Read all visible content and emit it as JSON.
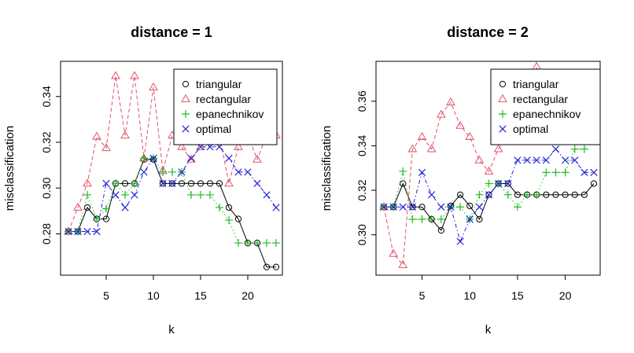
{
  "chart_data": [
    {
      "type": "line",
      "title": "distance = 1",
      "xlabel": "k",
      "ylabel": "misclassification",
      "xlim": [
        1,
        23
      ],
      "ylim": [
        0.264,
        0.354
      ],
      "x_ticks": [
        5,
        10,
        15,
        20
      ],
      "y_ticks": [
        0.28,
        0.3,
        0.32,
        0.34
      ],
      "y_tick_labels": [
        "0.28",
        "0.30",
        "0.32",
        "0.34"
      ],
      "x": [
        1,
        2,
        3,
        4,
        5,
        6,
        7,
        8,
        9,
        10,
        11,
        12,
        13,
        14,
        15,
        16,
        17,
        18,
        19,
        20,
        21,
        22,
        23
      ],
      "series": [
        {
          "name": "triangular",
          "color": "#000000",
          "marker": "circle",
          "line": "solid",
          "values": [
            0.281,
            0.281,
            0.2915,
            0.2865,
            0.2865,
            0.302,
            0.302,
            0.302,
            0.3125,
            0.3125,
            0.302,
            0.302,
            0.302,
            0.302,
            0.302,
            0.302,
            0.302,
            0.2915,
            0.2865,
            0.276,
            0.276,
            0.2655,
            0.2655
          ]
        },
        {
          "name": "rectangular",
          "color": "#DF536B",
          "marker": "triangle",
          "line": "dashed",
          "values": [
            0.281,
            0.2915,
            0.302,
            0.3225,
            0.3175,
            0.349,
            0.323,
            0.349,
            0.313,
            0.344,
            0.3075,
            0.323,
            0.318,
            0.3125,
            0.318,
            0.323,
            0.323,
            0.302,
            0.318,
            0.323,
            0.3125,
            0.323,
            0.323
          ]
        },
        {
          "name": "epanechnikov",
          "color": "#22BB22",
          "marker": "plus",
          "line": "dotted",
          "values": [
            0.281,
            0.281,
            0.297,
            0.2865,
            0.291,
            0.302,
            0.297,
            0.302,
            0.313,
            0.313,
            0.307,
            0.307,
            0.307,
            0.297,
            0.297,
            0.297,
            0.2915,
            0.286,
            0.276,
            0.276,
            0.276,
            0.276,
            0.276
          ]
        },
        {
          "name": "optimal",
          "color": "#2222DD",
          "marker": "x",
          "line": "dotdash",
          "values": [
            0.281,
            0.281,
            0.281,
            0.281,
            0.302,
            0.297,
            0.2915,
            0.297,
            0.307,
            0.313,
            0.302,
            0.302,
            0.307,
            0.313,
            0.318,
            0.318,
            0.318,
            0.313,
            0.307,
            0.307,
            0.302,
            0.297,
            0.2915
          ]
        }
      ],
      "legend": {
        "position": "top-right",
        "entries": [
          "triangular",
          "rectangular",
          "epanechnikov",
          "optimal"
        ]
      }
    },
    {
      "type": "line",
      "title": "distance = 2",
      "xlabel": "k",
      "ylabel": "misclassification",
      "xlim": [
        1,
        23
      ],
      "ylim": [
        0.284,
        0.3765
      ],
      "x_ticks": [
        5,
        10,
        15,
        20
      ],
      "y_ticks": [
        0.3,
        0.32,
        0.34,
        0.36
      ],
      "y_tick_labels": [
        "0.30",
        "0.32",
        "0.34",
        "0.36"
      ],
      "x": [
        1,
        2,
        3,
        4,
        5,
        6,
        7,
        8,
        9,
        10,
        11,
        12,
        13,
        14,
        15,
        16,
        17,
        18,
        19,
        20,
        21,
        22,
        23
      ],
      "series": [
        {
          "name": "triangular",
          "color": "#000000",
          "marker": "circle",
          "line": "solid",
          "values": [
            0.3125,
            0.3125,
            0.323,
            0.3125,
            0.3125,
            0.307,
            0.302,
            0.313,
            0.318,
            0.313,
            0.307,
            0.318,
            0.323,
            0.323,
            0.318,
            0.318,
            0.318,
            0.318,
            0.318,
            0.318,
            0.318,
            0.318,
            0.323
          ]
        },
        {
          "name": "rectangular",
          "color": "#DF536B",
          "marker": "triangle",
          "line": "dashed",
          "values": [
            0.3125,
            0.2915,
            0.2865,
            0.3385,
            0.344,
            0.3385,
            0.354,
            0.3595,
            0.349,
            0.344,
            0.3335,
            0.3285,
            0.3385,
            0.344,
            0.349,
            0.3545,
            0.3755,
            0.3595,
            0.359,
            0.364,
            0.364,
            0.364,
            0.3645
          ]
        },
        {
          "name": "epanechnikov",
          "color": "#22BB22",
          "marker": "plus",
          "line": "dotted",
          "values": [
            0.3125,
            0.3125,
            0.3285,
            0.307,
            0.307,
            0.307,
            0.307,
            0.3125,
            0.3125,
            0.307,
            0.318,
            0.323,
            0.323,
            0.318,
            0.3125,
            0.318,
            0.318,
            0.328,
            0.328,
            0.328,
            0.3385,
            0.3385,
            0.344
          ]
        },
        {
          "name": "optimal",
          "color": "#2222DD",
          "marker": "x",
          "line": "dotdash",
          "values": [
            0.3125,
            0.3125,
            0.3125,
            0.3125,
            0.328,
            0.318,
            0.3125,
            0.3125,
            0.297,
            0.307,
            0.3125,
            0.318,
            0.323,
            0.323,
            0.3335,
            0.3335,
            0.3335,
            0.3335,
            0.3385,
            0.3335,
            0.3335,
            0.328,
            0.328
          ]
        }
      ],
      "legend": {
        "position": "top-right",
        "entries": [
          "triangular",
          "rectangular",
          "epanechnikov",
          "optimal"
        ]
      }
    }
  ]
}
